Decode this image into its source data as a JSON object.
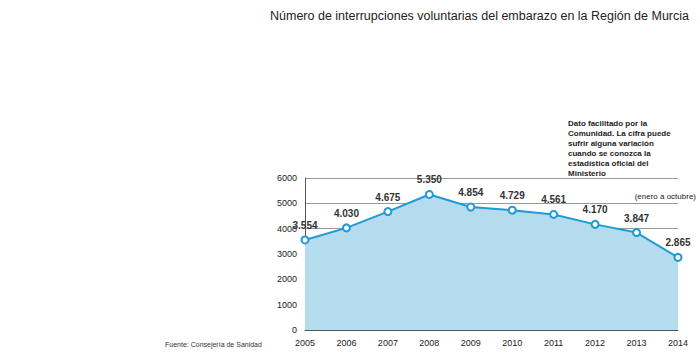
{
  "chart_data": {
    "type": "area",
    "title": "Número de interrupciones voluntarias del embarazo en la Región de Murcia",
    "annotations": [
      "Dato facilitado por la Comunidad. La cifra puede sufrir alguna variación cuando se conozca la estadística oficial del Ministerio",
      "(enero a octubre)",
      "Fuente: Consejería de Sanidad"
    ],
    "categories": [
      "2005",
      "2006",
      "2007",
      "2008",
      "2009",
      "2010",
      "2011",
      "2012",
      "2013",
      "2014"
    ],
    "values": [
      3554,
      4030,
      4675,
      5350,
      4854,
      4729,
      4561,
      4170,
      3847,
      2865
    ],
    "value_labels": [
      "3.554",
      "4.030",
      "4.675",
      "5.350",
      "4.854",
      "4.729",
      "4.561",
      "4.170",
      "3.847",
      "2.865"
    ],
    "color": "#1e9ad6",
    "marker": "circle",
    "ylim": [
      0,
      6000
    ],
    "yticks": [
      0,
      1000,
      2000,
      3000,
      4000,
      5000,
      6000
    ],
    "grid": true,
    "data_labels": true
  }
}
